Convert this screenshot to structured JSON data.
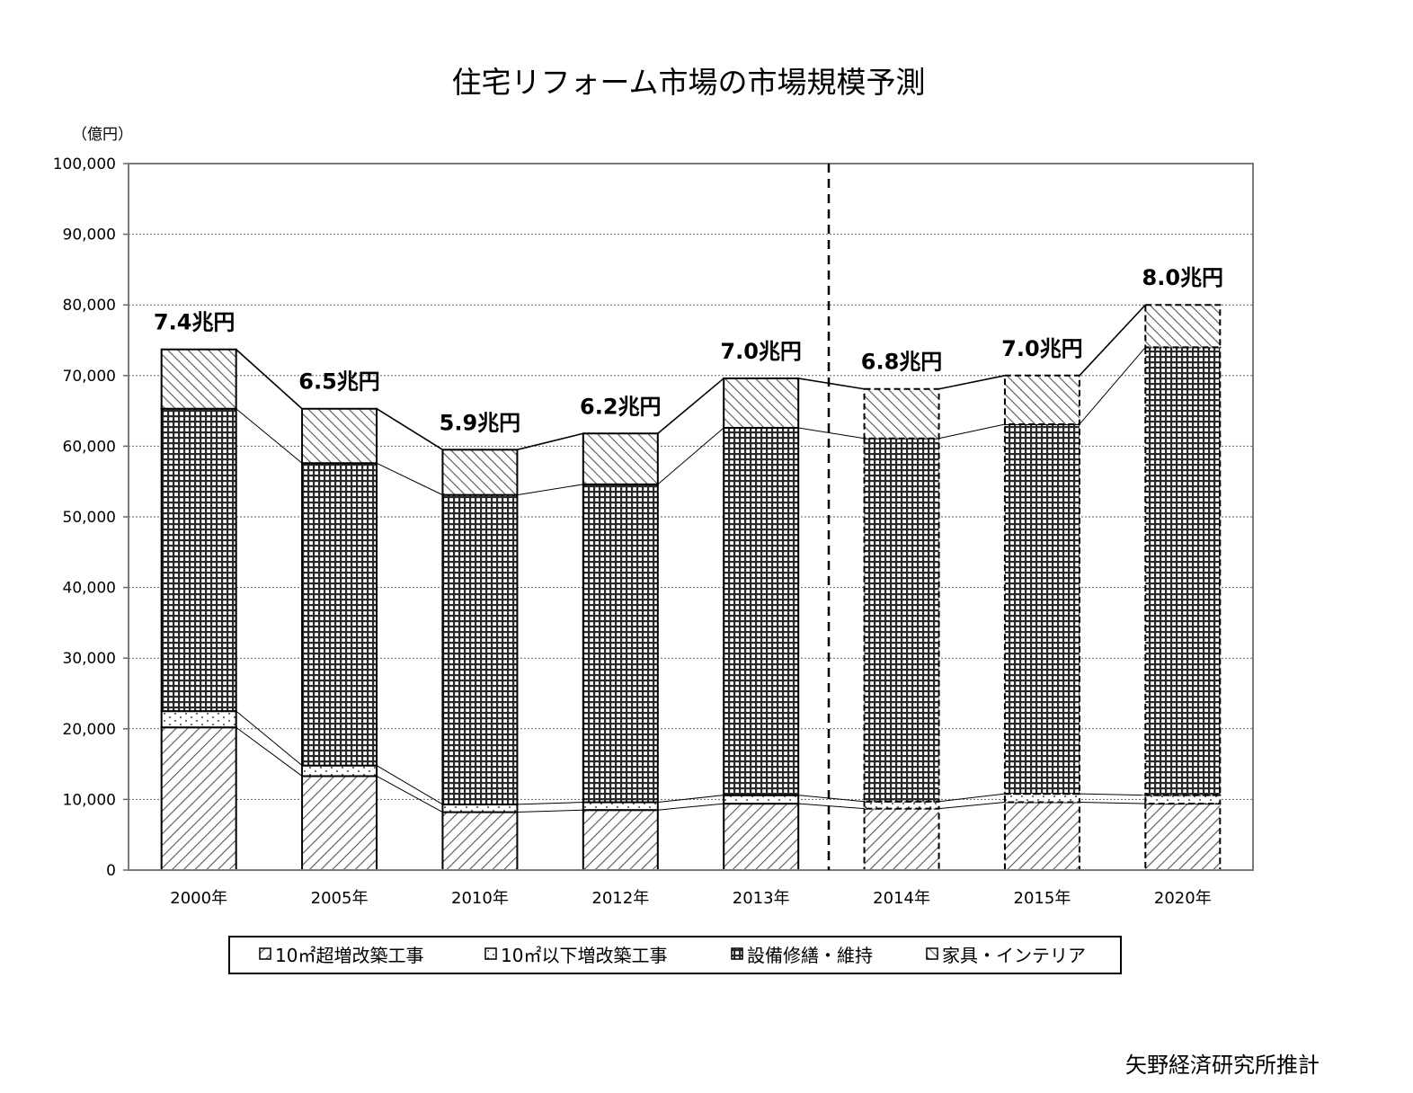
{
  "chart_data": {
    "type": "bar",
    "stacked": true,
    "title": "住宅リフォーム市場の市場規模予測",
    "unit_label": "（億円）",
    "ylim": [
      0,
      100000
    ],
    "yticks": [
      0,
      10000,
      20000,
      30000,
      40000,
      50000,
      60000,
      70000,
      80000,
      90000,
      100000
    ],
    "ytick_labels": [
      "0",
      "10,000",
      "20,000",
      "30,000",
      "40,000",
      "50,000",
      "60,000",
      "70,000",
      "80,000",
      "90,000",
      "100,000"
    ],
    "categories": [
      "2000年",
      "2005年",
      "2010年",
      "2012年",
      "2013年",
      "2014年",
      "2015年",
      "2020年"
    ],
    "forecast_start_index": 5,
    "series": [
      {
        "name": "10㎡超増改築工事",
        "pattern": "diag-left",
        "values": [
          20200,
          13300,
          8200,
          8500,
          9400,
          8700,
          9600,
          9400
        ]
      },
      {
        "name": "10㎡以下増改築工事",
        "pattern": "dots",
        "values": [
          2300,
          1500,
          1100,
          1100,
          1200,
          1000,
          1200,
          1200
        ]
      },
      {
        "name": "設備修繕・維持",
        "pattern": "grid",
        "values": [
          42800,
          42800,
          43800,
          45000,
          52000,
          51400,
          52300,
          63400
        ]
      },
      {
        "name": "家具・インテリア",
        "pattern": "diag-right",
        "values": [
          8400,
          7700,
          6400,
          7200,
          7000,
          7000,
          6900,
          6000
        ]
      }
    ],
    "total_labels": [
      "7.4兆円",
      "6.5兆円",
      "5.9兆円",
      "6.2兆円",
      "7.0兆円",
      "6.8兆円",
      "7.0兆円",
      "8.0兆円"
    ],
    "legend": [
      "10㎡超増改築工事",
      "10㎡以下増改築工事",
      "設備修繕・維持",
      "家具・インテリア"
    ],
    "grid": true,
    "legend_position": "bottom"
  },
  "source": "矢野経済研究所推計"
}
